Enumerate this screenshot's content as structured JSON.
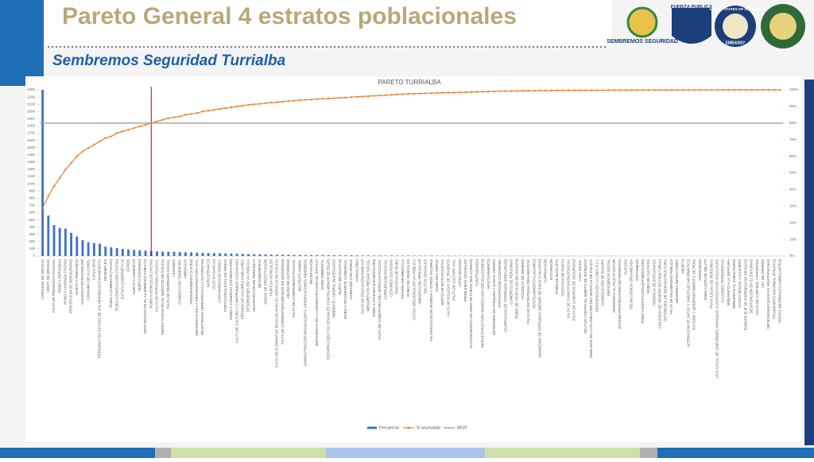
{
  "header": {
    "title": "Pareto General 4 estratos poblacionales",
    "subtitle": "Sembremos Seguridad Turrialba"
  },
  "logos": [
    "SEMBREMOS SEGURIDAD",
    "FUERZA PUBLICA",
    "UNITED STATES OF AMERICA",
    "EMBASSY"
  ],
  "chart_data": {
    "type": "pareto",
    "title": "PARETO TURRIALBA",
    "categories": [
      "CONSUMO DE DROGAS",
      "VENTA DE DROGAS",
      "FALTA DE PRESENCIA POLICIAL",
      "ROBO A PERSONAS",
      "ROBO A VIVIENDA (TACHA)",
      "PERCEPCIÓN DE INSEGURIDAD",
      "HURTO A PERSONAS",
      "VIOLENCIA INTRAFAMILIAR",
      "CONSUMO DE ALCOHOL",
      "ILEGALIDAD",
      "PERSONAS EN ESTADO DE VULNERABILIDAD MANIFIESTA",
      "DESEMPLEO",
      "ROBO A COMERCIO (TACHA)",
      "ROBO A EDIFICACIÓN (TACHA)",
      "ESTAFA (CIBERNÉTICA)",
      "DAÑOS",
      "HURTO A COMERCIO",
      "HURTO (VIVIENDA)",
      "DEFICIENCIAS EN EL ALUMBRADO PÚBLICO",
      "ROBO A VEHÍCULOS (TACHA)",
      "FALTA DE PERSONAL POLICIAL",
      "INEFECTIVIDAD EN EL SERVICIO DE POLICÍA",
      "FALTA DE INVERSIÓN SOCIAL",
      "LESIONES",
      "CONDUCCIÓN TEMERARIA",
      "AMENAZAS",
      "ASEGURAMIENTO (LOTES)",
      "DEFICIENCIA EN LA INFRAESTRUCTURA VIAL",
      "RESISTENCIA (IRRESPETO A LA AUTORIDAD)",
      "NARCOTRÁFICO",
      "OCIO (VAGANCIA)",
      "CONTAMINACIÓN SÓNICA",
      "PORTACIÓN ILEGAL DE ARMAS",
      "ROBO A COMERCIO (INTIMIDACIÓN)",
      "FALTA DE CULTURA Y COMPROMISO CIUDADANO",
      "PÉRDIDA DE VALORES FAMILIARES",
      "DESÓRDENES EN VÍA PÚBLICA",
      "DESAPARICIÓN DE PERSONAS",
      "DESOBEDIENCIA",
      "ZONAS DE PROSTITUCIÓN",
      "HURTO A VEHÍCULOS",
      "FALTA DE ELEMENTOS BÁSICOS PARA EL SERVICIO DE POLICÍA",
      "FALTA DE CORRESPONSABILIDAD EN SEGURIDAD",
      "ABUSO DE AUTORIDAD",
      "FALTA DE COMPROMISO POLICIAL",
      "MALTRATO ANIMAL",
      "ADMINISTRACIÓN FRAUDULENTA, APROPIACIONES INDEBIDAS",
      "RECEPTACIÓN",
      "INEFICIENCIA EN LA ADMINISTRACIÓN DE JUSTICIA",
      "DAÑO AMBIENTAL",
      "ESTUPRO (DELITOS SEXUALES CONTRA MENOR DE EDAD)",
      "AMBIENTE LABORAL INADECUADO",
      "HURTO (BICICLETAS)",
      "ROBO A TRANSPORTE COMERCIAL",
      "AGRESIÓN CON ARMAS",
      "VANDALISMO",
      "FALTA DE EDUCACIÓN FAMILIAR",
      "MENORES EN RIESGO SOCIAL",
      "ROBO A VIVIENDA (INTIMIDACIÓN)",
      "FALTA DE COBERTURA DEL SERVICIO POLICIAL",
      "CORRUPCIÓN POLICIAL",
      "LESIONES CULPOSAS",
      "TENTATIVA DE ROBO",
      "FRAUDE INFORMÁTICO",
      "ROBO DE VEHÍCULOS",
      "ACTOS OBSCENOS EN VÍA PÚBLICA",
      "INMIGRACIÓN IRREGULAR",
      "DELITOS SEXUALES",
      "FALSIFICACIÓN DE MONEDA Y OTROS VALORES",
      "HOMICIDIO SIMPLE",
      "HURTO DE MOTOCICLETAS",
      "FALTA DE POLICÍAS DE TRÁNSITO",
      "FALTA DE CULTURA VIAL",
      "LOTES BALDÍOS",
      "PROBLEMAS VECINALES",
      "ACCIONAMIENTO DE ARMA DE FUEGO (BALACERAS)",
      "CONTRABANDO",
      "INFRAESTRUCTURA INADECUADA (DELEGACIONES)",
      "HOSTIGAMIENTO",
      "DETERIORO DE PARQUES Y ZONAS VERDES",
      "PARTICIPACIÓN CIUDADANA",
      "USURPACIÓN DE TERRENOS (PRECARIOS)",
      "COMERCIO DE PERSONAS",
      "ROBO DE VEHÍCULOS (BAJONAZO)",
      "VIOLENCIA DE GÉNERO",
      "FALTA DE ESTRATEGIA ORGANIZATIVA",
      "HOSTIGAMIENTO (LUGARES)",
      "ABANDONO DE PERSONAS (MENOR DE EDAD O INCAPAZ)",
      "CORRUPCIÓN",
      "EXTORSIÓN",
      "ROBO DE BICICLETA",
      "TENTATIVA DE HURTO",
      "FALTA DE CAPACITACIÓN POLICIAL",
      "FALTA DE CÁMARAS DE SEGURIDAD",
      "CAZA ILEGAL",
      "DELITOS CONTRA EL ÁMBITO DE INTIMIDAD",
      "DEBILIDAD EN LA PLANEACIÓN DEL SERVICIO DE POLICÍA",
      "DEFICIENCIA EN LA LÍNEA 9-1-1",
      "ACUMULACIÓN DE BASURA",
      "INEFICIENCIA SOCIAL",
      "IRRESPETO AL ADULTO MAYOR",
      "SISTEMA PENITENCIARIO DETERIORADO",
      "SUICIDIO",
      "DELINCUENCIA ORGANIZADA",
      "DISTURBIOS",
      "ROBO A EDIFICACIÓN (INTIMIDACIÓN)",
      "ROBO DE CULTIVOS",
      "TENENCIA DE EXPLOSIVOS",
      "VIOLENCIA DE GÉNERO (ESTRUCTURAL)",
      "DETERIORO DE INFRAESTRUCTURA",
      "FALTA DE SALUBRIDAD PÚBLICA",
      "MENORES INFRACTORES",
      "ABORTO",
      "ALTERACIÓN DE DATOS Y SABOTAJE INFORMÁTICO",
      "EVASIÓN Y QUEBRANTAMIENTO DE PENA",
      "HOMICIDIOS",
      "SIMULACIÓN DE DELITO",
      "TRATA ILEGAL DE PERSONAS",
      "USO ILEGAL DE UNIFORMES, INSIGNIAS O DISPOSITIVOS POLICIALES",
      "ACCIONES TERRORISTAS",
      "IRRESPETO A LA JEFATURA",
      "IRRESPETO AL SUBALTERNO",
      "ACOSO SEXUAL CALLEJERO",
      "BÚNKER (EJE DE EXPENDIO DE DROGAS)",
      "DESATENCIÓN EN EL ENTORNO",
      "FALTA DE CONTROL A PATENTES",
      "LEY DE GÉNERO",
      "NECESIDADES BÁSICAS INSATISFECHAS",
      "TRANSPORTE INFORMAL (PIRATAS)",
      "VENTAS INFORMALES (AMBULANTES)"
    ],
    "series": [
      {
        "name": "Frecuencia",
        "color": "#4472c4",
        "values": [
          2300,
          560,
          430,
          390,
          380,
          320,
          270,
          220,
          190,
          180,
          170,
          130,
          120,
          110,
          100,
          90,
          85,
          80,
          75,
          70,
          65,
          62,
          60,
          58,
          55,
          52,
          50,
          48,
          45,
          42,
          40,
          38,
          36,
          34,
          32,
          30,
          28,
          26,
          24,
          22,
          20,
          19,
          18,
          17,
          16,
          15,
          14,
          13,
          12,
          12,
          11,
          11,
          10,
          10,
          9,
          9,
          8,
          8,
          8,
          7,
          7,
          7,
          6,
          6,
          6,
          6,
          5,
          5,
          5,
          5,
          5,
          5,
          4,
          4,
          4,
          4,
          4,
          4,
          3,
          3,
          3,
          3,
          3,
          3,
          3,
          3,
          3,
          2,
          2,
          2,
          2,
          2,
          2,
          2,
          2,
          2,
          2,
          2,
          2,
          2,
          2,
          1,
          1,
          1,
          1,
          1,
          1,
          1,
          1,
          1,
          1,
          1,
          1,
          1,
          1,
          1,
          1,
          1,
          1,
          1,
          1,
          1,
          1,
          1,
          1,
          1,
          1,
          1,
          1,
          1
        ]
      },
      {
        "name": "% acumulado",
        "color": "#ed7d31",
        "axis": "y2",
        "values": [
          29,
          36,
          42,
          47,
          52,
          56,
          60,
          63,
          65,
          67,
          69,
          71,
          72,
          74,
          75,
          76,
          77,
          78,
          79,
          80,
          81,
          82,
          83,
          83.5,
          84,
          85,
          85.5,
          86,
          87,
          87.5,
          88,
          88.5,
          89,
          89.5,
          90,
          90.5,
          91,
          91.3,
          91.6,
          92,
          92.3,
          92.6,
          92.9,
          93.2,
          93.5,
          93.8,
          94,
          94.2,
          94.4,
          94.6,
          94.8,
          95,
          95.2,
          95.4,
          95.6,
          95.8,
          96,
          96.2,
          96.4,
          96.6,
          96.8,
          97,
          97.2,
          97.4,
          97.6,
          97.7,
          97.8,
          97.9,
          98,
          98.1,
          98.2,
          98.3,
          98.4,
          98.5,
          98.6,
          98.7,
          98.8,
          98.9,
          99,
          99.1,
          99.2,
          99.25,
          99.3,
          99.35,
          99.4,
          99.45,
          99.5,
          99.55,
          99.6,
          99.62,
          99.64,
          99.66,
          99.68,
          99.7,
          99.72,
          99.74,
          99.76,
          99.78,
          99.8,
          99.82,
          99.84,
          99.85,
          99.86,
          99.87,
          99.88,
          99.89,
          99.9,
          99.91,
          99.92,
          99.93,
          99.94,
          99.95,
          99.955,
          99.96,
          99.965,
          99.97,
          99.975,
          99.98,
          99.982,
          99.984,
          99.986,
          99.988,
          99.99,
          99.992,
          99.994,
          99.995,
          99.996,
          99.997,
          99.998,
          100
        ]
      }
    ],
    "reference_line": {
      "name": "80/20",
      "value": 80,
      "color": "#a5a5a5",
      "axis": "y2"
    },
    "cut_color": "#c00000",
    "ylim": [
      0,
      2300
    ],
    "yticks": [
      0,
      100,
      200,
      300,
      400,
      500,
      600,
      700,
      800,
      900,
      1000,
      1100,
      1200,
      1300,
      1400,
      1500,
      1600,
      1700,
      1800,
      1900,
      2000,
      2100,
      2200,
      2300
    ],
    "y2lim": [
      0,
      100
    ],
    "y2ticks": [
      {
        "value": 0,
        "label": "0%"
      },
      {
        "value": 10,
        "label": "10%"
      },
      {
        "value": 20,
        "label": "20%"
      },
      {
        "value": 30,
        "label": "30%"
      },
      {
        "value": 40,
        "label": "40%"
      },
      {
        "value": 50,
        "label": "50%"
      },
      {
        "value": 60,
        "label": "60%"
      },
      {
        "value": 70,
        "label": "70%"
      },
      {
        "value": 80,
        "label": "80%"
      },
      {
        "value": 90,
        "label": "90%"
      },
      {
        "value": 100,
        "label": "100%"
      }
    ]
  }
}
